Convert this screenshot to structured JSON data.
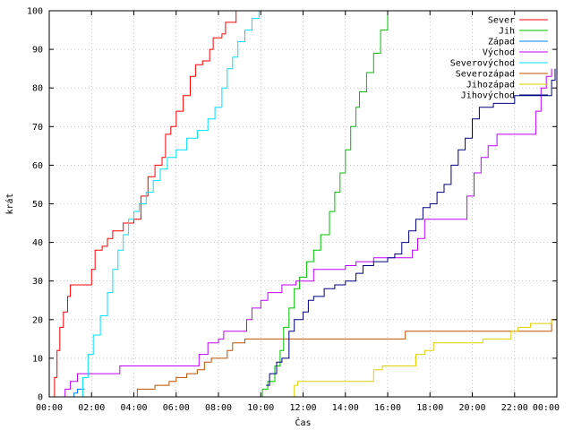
{
  "chart_data": {
    "type": "line",
    "title": "",
    "xlabel": "Čas",
    "ylabel": "krát",
    "xlim": [
      "00:00",
      "24:00"
    ],
    "ylim": [
      0,
      100
    ],
    "x_ticks": [
      "00:00",
      "02:00",
      "04:00",
      "06:00",
      "08:00",
      "10:00",
      "12:00",
      "14:00",
      "16:00",
      "18:00",
      "20:00",
      "22:00",
      "00:00"
    ],
    "y_ticks": [
      0,
      10,
      20,
      30,
      40,
      50,
      60,
      70,
      80,
      90,
      100
    ],
    "grid": true,
    "legend_position": "top-right",
    "series": [
      {
        "name": "Sever",
        "color": "#ff0000",
        "points": [
          [
            "00:05",
            0
          ],
          [
            "00:15",
            5
          ],
          [
            "00:22",
            12
          ],
          [
            "00:30",
            18
          ],
          [
            "00:40",
            22
          ],
          [
            "00:52",
            26
          ],
          [
            "01:00",
            29
          ],
          [
            "01:50",
            29
          ],
          [
            "02:00",
            33
          ],
          [
            "02:10",
            38
          ],
          [
            "02:30",
            39
          ],
          [
            "02:45",
            41
          ],
          [
            "03:00",
            43
          ],
          [
            "03:30",
            45
          ],
          [
            "04:00",
            46
          ],
          [
            "04:20",
            52
          ],
          [
            "04:40",
            57
          ],
          [
            "05:00",
            60
          ],
          [
            "05:20",
            62
          ],
          [
            "05:30",
            68
          ],
          [
            "05:45",
            70
          ],
          [
            "06:00",
            74
          ],
          [
            "06:20",
            78
          ],
          [
            "06:40",
            83
          ],
          [
            "06:55",
            86
          ],
          [
            "07:15",
            87
          ],
          [
            "07:35",
            90
          ],
          [
            "07:45",
            93
          ],
          [
            "08:10",
            94
          ],
          [
            "08:20",
            97
          ],
          [
            "08:50",
            100
          ]
        ]
      },
      {
        "name": "Jih",
        "color": "#00c000",
        "points": [
          [
            "09:45",
            0
          ],
          [
            "10:05",
            2
          ],
          [
            "10:20",
            4
          ],
          [
            "10:40",
            8
          ],
          [
            "10:55",
            12
          ],
          [
            "11:05",
            18
          ],
          [
            "11:20",
            23
          ],
          [
            "11:35",
            28
          ],
          [
            "11:50",
            31
          ],
          [
            "12:10",
            35
          ],
          [
            "12:30",
            38
          ],
          [
            "12:50",
            42
          ],
          [
            "13:15",
            48
          ],
          [
            "13:30",
            53
          ],
          [
            "13:45",
            58
          ],
          [
            "14:00",
            64
          ],
          [
            "14:15",
            70
          ],
          [
            "14:30",
            75
          ],
          [
            "14:40",
            79
          ],
          [
            "15:00",
            84
          ],
          [
            "15:20",
            89
          ],
          [
            "15:40",
            95
          ],
          [
            "16:00",
            100
          ]
        ]
      },
      {
        "name": "Západ",
        "color": "#0080ff",
        "points": [
          [
            "00:50",
            0
          ],
          [
            "01:10",
            1
          ],
          [
            "01:20",
            2
          ],
          [
            "01:40",
            2
          ]
        ]
      },
      {
        "name": "Východ",
        "color": "#c000ff",
        "points": [
          [
            "00:35",
            0
          ],
          [
            "00:45",
            2
          ],
          [
            "01:00",
            4
          ],
          [
            "01:20",
            6
          ],
          [
            "03:15",
            6
          ],
          [
            "03:20",
            8
          ],
          [
            "06:50",
            8
          ],
          [
            "07:05",
            11
          ],
          [
            "07:30",
            14
          ],
          [
            "08:00",
            15
          ],
          [
            "08:15",
            17
          ],
          [
            "09:00",
            17
          ],
          [
            "09:20",
            20
          ],
          [
            "09:35",
            23
          ],
          [
            "10:00",
            25
          ],
          [
            "10:20",
            27
          ],
          [
            "11:00",
            29
          ],
          [
            "11:40",
            30
          ],
          [
            "12:30",
            33
          ],
          [
            "14:00",
            34
          ],
          [
            "14:30",
            35
          ],
          [
            "15:20",
            36
          ],
          [
            "17:10",
            38
          ],
          [
            "17:25",
            41
          ],
          [
            "17:45",
            46
          ],
          [
            "19:30",
            46
          ],
          [
            "19:45",
            52
          ],
          [
            "20:05",
            58
          ],
          [
            "20:25",
            62
          ],
          [
            "20:45",
            65
          ],
          [
            "21:10",
            68
          ],
          [
            "22:45",
            68
          ],
          [
            "23:00",
            74
          ],
          [
            "23:15",
            80
          ],
          [
            "23:30",
            83
          ],
          [
            "23:45",
            85
          ]
        ]
      },
      {
        "name": "Severovýchod",
        "color": "#00e0ff",
        "points": [
          [
            "01:20",
            0
          ],
          [
            "01:35",
            5
          ],
          [
            "01:50",
            11
          ],
          [
            "02:05",
            16
          ],
          [
            "02:25",
            21
          ],
          [
            "02:45",
            27
          ],
          [
            "03:00",
            33
          ],
          [
            "03:15",
            38
          ],
          [
            "03:30",
            42
          ],
          [
            "03:45",
            46
          ],
          [
            "04:00",
            48
          ],
          [
            "04:15",
            50
          ],
          [
            "04:35",
            53
          ],
          [
            "04:55",
            56
          ],
          [
            "05:15",
            59
          ],
          [
            "05:35",
            62
          ],
          [
            "06:00",
            64
          ],
          [
            "06:30",
            67
          ],
          [
            "07:00",
            69
          ],
          [
            "07:30",
            72
          ],
          [
            "07:50",
            75
          ],
          [
            "08:10",
            80
          ],
          [
            "08:25",
            85
          ],
          [
            "08:40",
            88
          ],
          [
            "08:55",
            92
          ],
          [
            "09:15",
            95
          ],
          [
            "09:35",
            98
          ],
          [
            "09:55",
            100
          ]
        ]
      },
      {
        "name": "Severozápad",
        "color": "#c05000",
        "points": [
          [
            "04:05",
            0
          ],
          [
            "04:10",
            2
          ],
          [
            "05:00",
            3
          ],
          [
            "05:40",
            4
          ],
          [
            "06:00",
            5
          ],
          [
            "06:30",
            6
          ],
          [
            "07:00",
            7
          ],
          [
            "07:20",
            9
          ],
          [
            "07:40",
            10
          ],
          [
            "08:25",
            12
          ],
          [
            "08:40",
            14
          ],
          [
            "09:15",
            15
          ],
          [
            "16:40",
            15
          ],
          [
            "16:50",
            17
          ],
          [
            "23:40",
            17
          ],
          [
            "23:45",
            20
          ],
          [
            "24:00",
            21
          ]
        ]
      },
      {
        "name": "Jihozápad",
        "color": "#e0d000",
        "points": [
          [
            "11:30",
            0
          ],
          [
            "11:35",
            3
          ],
          [
            "11:45",
            4
          ],
          [
            "15:00",
            4
          ],
          [
            "15:20",
            7
          ],
          [
            "15:45",
            8
          ],
          [
            "17:00",
            8
          ],
          [
            "17:20",
            11
          ],
          [
            "17:45",
            12
          ],
          [
            "18:10",
            14
          ],
          [
            "20:00",
            14
          ],
          [
            "20:30",
            15
          ],
          [
            "21:40",
            15
          ],
          [
            "21:50",
            17
          ],
          [
            "22:10",
            18
          ],
          [
            "22:45",
            19
          ],
          [
            "23:30",
            19
          ],
          [
            "23:45",
            20
          ]
        ]
      },
      {
        "name": "Jihovýchod",
        "color": "#000080",
        "points": [
          [
            "10:15",
            3
          ],
          [
            "10:25",
            6
          ],
          [
            "10:45",
            9
          ],
          [
            "11:00",
            10
          ],
          [
            "11:20",
            17
          ],
          [
            "11:35",
            20
          ],
          [
            "12:00",
            22
          ],
          [
            "12:15",
            25
          ],
          [
            "12:30",
            26
          ],
          [
            "13:00",
            28
          ],
          [
            "13:30",
            29
          ],
          [
            "14:00",
            30
          ],
          [
            "14:30",
            32
          ],
          [
            "14:50",
            34
          ],
          [
            "15:20",
            35
          ],
          [
            "16:00",
            36
          ],
          [
            "16:20",
            37
          ],
          [
            "16:40",
            40
          ],
          [
            "17:00",
            43
          ],
          [
            "17:20",
            46
          ],
          [
            "17:40",
            49
          ],
          [
            "18:00",
            50
          ],
          [
            "18:20",
            53
          ],
          [
            "18:40",
            55
          ],
          [
            "19:00",
            60
          ],
          [
            "19:20",
            64
          ],
          [
            "19:40",
            67
          ],
          [
            "20:00",
            72
          ],
          [
            "20:20",
            75
          ],
          [
            "21:00",
            76
          ],
          [
            "22:00",
            78
          ],
          [
            "23:40",
            78
          ],
          [
            "23:45",
            82
          ],
          [
            "23:55",
            85
          ]
        ]
      }
    ]
  }
}
